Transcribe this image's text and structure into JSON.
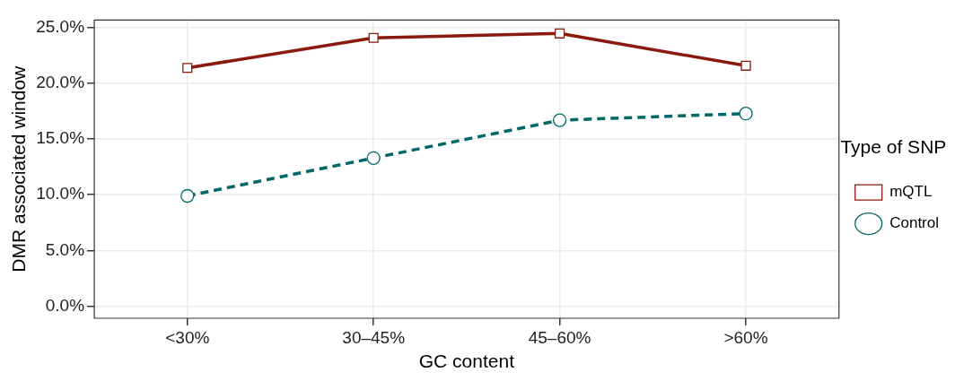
{
  "chart_data": {
    "type": "line",
    "xlabel": "GC content",
    "ylabel": "DMR associated window",
    "legend_title": "Type of SNP",
    "legend": "right",
    "grid": true,
    "categories": [
      "<30%",
      "30–45%",
      "45–60%",
      ">60%"
    ],
    "ylim": [
      -1.1,
      25.7
    ],
    "yticks": [
      {
        "value": 0,
        "label": "0.0%"
      },
      {
        "value": 5,
        "label": "5.0%"
      },
      {
        "value": 10,
        "label": "10.0%"
      },
      {
        "value": 15,
        "label": "15.0%"
      },
      {
        "value": 20,
        "label": "20.0%"
      },
      {
        "value": 25,
        "label": "25.0%"
      }
    ],
    "series": [
      {
        "name": "mQTL",
        "color": "#8b1a0e",
        "marker": "square",
        "line_style": "solid",
        "values": [
          21.4,
          24.1,
          24.5,
          21.6
        ]
      },
      {
        "name": "Control",
        "color": "#006666",
        "marker": "circle",
        "line_style": "dashed",
        "values": [
          9.9,
          13.3,
          16.7,
          17.3
        ]
      }
    ]
  }
}
